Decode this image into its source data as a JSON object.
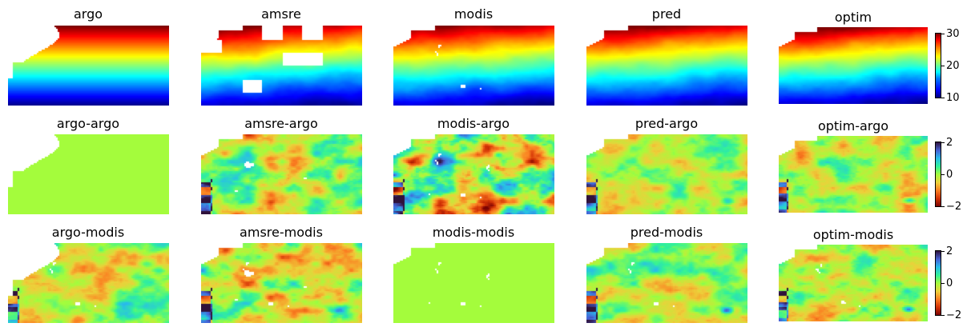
{
  "chart_data": [
    {
      "type": "heatmap",
      "row_titles": [
        "argo",
        "amsre",
        "modis",
        "pred",
        "optim"
      ],
      "panels": [
        "argo",
        "amsre",
        "modis",
        "pred",
        "optim"
      ],
      "colorbar": {
        "ticks": [
          "30",
          "20",
          "10"
        ],
        "range": [
          10,
          30
        ],
        "colormap": "jet"
      }
    },
    {
      "type": "heatmap",
      "panels": [
        "argo-argo",
        "amsre-argo",
        "modis-argo",
        "pred-argo",
        "optim-argo"
      ],
      "colorbar": {
        "ticks": [
          "2",
          "0",
          "−2"
        ],
        "range": [
          -2,
          2
        ],
        "colormap": "turbo (reversed)"
      }
    },
    {
      "type": "heatmap",
      "panels": [
        "argo-modis",
        "amsre-modis",
        "modis-modis",
        "pred-modis",
        "optim-modis"
      ],
      "colorbar": {
        "ticks": [
          "2",
          "0",
          "−2"
        ],
        "range": [
          -2,
          2
        ],
        "colormap": "turbo (reversed)"
      }
    }
  ]
}
